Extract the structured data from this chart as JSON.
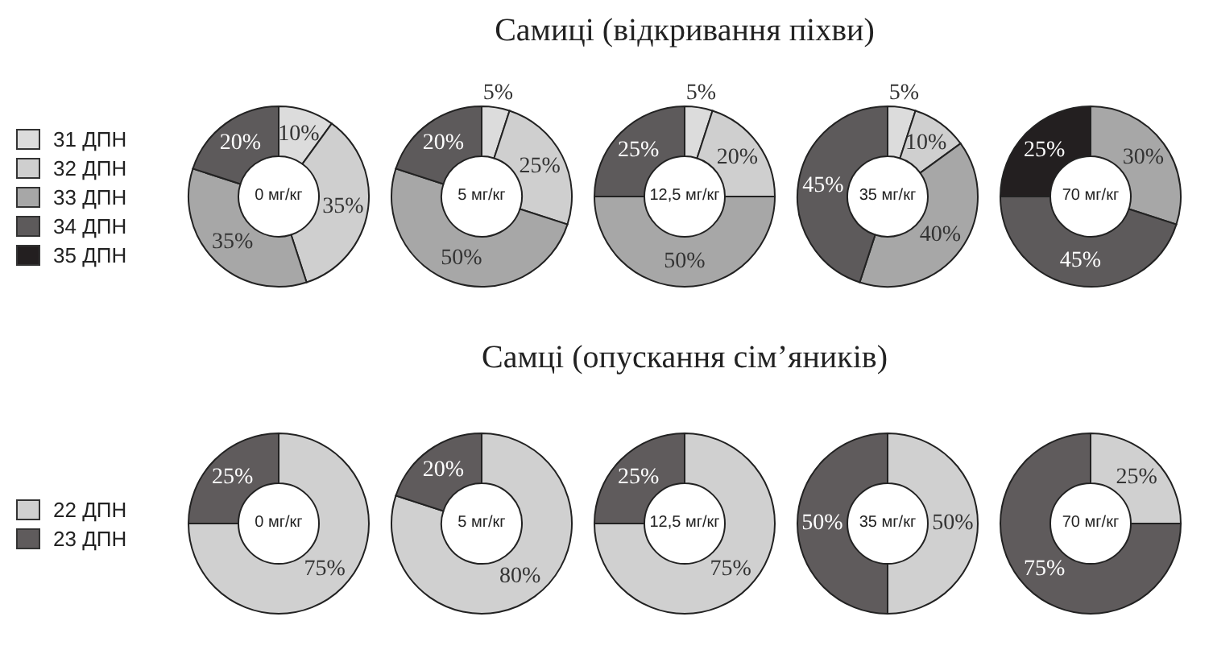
{
  "chart_data": [
    {
      "type": "donut",
      "title": "Самиці (відкривання піхви)",
      "legend": "left",
      "categories": [
        "31 ДПН",
        "32 ДПН",
        "33 ДПН",
        "34 ДПН",
        "35 ДПН"
      ],
      "colors": [
        "#dcdcdc",
        "#cfcfcf",
        "#a7a7a7",
        "#5d5a5b",
        "#231f20"
      ],
      "series": [
        {
          "name": "0 мг/кг",
          "values": [
            10,
            35,
            35,
            20,
            0
          ],
          "value_labels": [
            "10%",
            "35%",
            "35%",
            "20%",
            null
          ]
        },
        {
          "name": "5 мг/кг",
          "values": [
            5,
            25,
            50,
            20,
            0
          ],
          "value_labels": [
            "5%",
            "25%",
            "50%",
            "20%",
            null
          ]
        },
        {
          "name": "12,5 мг/кг",
          "values": [
            5,
            20,
            50,
            25,
            0
          ],
          "value_labels": [
            "5%",
            "20%",
            "50%",
            "25%",
            null
          ]
        },
        {
          "name": "35 мг/кг",
          "values": [
            5,
            10,
            40,
            45,
            0
          ],
          "value_labels": [
            "5%",
            "10%",
            "40%",
            "45%",
            null
          ]
        },
        {
          "name": "70 мг/кг",
          "values": [
            0,
            0,
            30,
            45,
            25
          ],
          "value_labels": [
            null,
            null,
            "30%",
            "45%",
            "25%"
          ]
        }
      ]
    },
    {
      "type": "donut",
      "title": "Самці (опускання сім’яників)",
      "legend": "left",
      "categories": [
        "22 ДПН",
        "23 ДПН"
      ],
      "colors": [
        "#d0d0d0",
        "#5f5b5c"
      ],
      "series": [
        {
          "name": "0 мг/кг",
          "values": [
            75,
            25
          ],
          "value_labels": [
            "75%",
            "25%"
          ]
        },
        {
          "name": "5 мг/кг",
          "values": [
            80,
            20
          ],
          "value_labels": [
            "80%",
            "20%"
          ]
        },
        {
          "name": "12,5 мг/кг",
          "values": [
            75,
            25
          ],
          "value_labels": [
            "75%",
            "25%"
          ]
        },
        {
          "name": "35 мг/кг",
          "values": [
            50,
            50
          ],
          "value_labels": [
            "50%",
            "50%"
          ]
        },
        {
          "name": "70 мг/кг",
          "values": [
            25,
            75
          ],
          "value_labels": [
            "25%",
            "75%"
          ]
        }
      ]
    }
  ]
}
